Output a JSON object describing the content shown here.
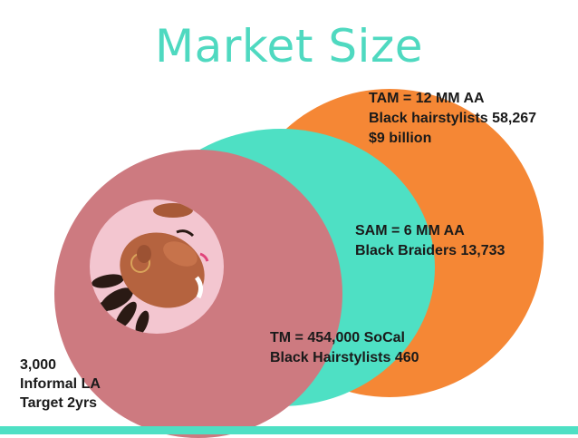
{
  "title": "Market Size",
  "colors": {
    "title": "#4fd9c0",
    "tam_circle": "#f58735",
    "sam_circle": "#4ee0c4",
    "tm_circle": "#cd7a80",
    "photo_bg": "#f3c6d0",
    "bottom_bar": "#4ee0c4"
  },
  "tam": {
    "line1": "TAM = 12 MM AA",
    "line2": "Black hairstylists 58,267",
    "line3": "$9 billion"
  },
  "sam": {
    "line1": "SAM = 6 MM AA",
    "line2": "Black Braiders 13,733"
  },
  "tm": {
    "line1": "TM = 454,000 SoCal",
    "line2": "Black Hairstylists 460"
  },
  "target": {
    "line1": "3,000",
    "line2": "Informal LA",
    "line3": "Target 2yrs"
  }
}
